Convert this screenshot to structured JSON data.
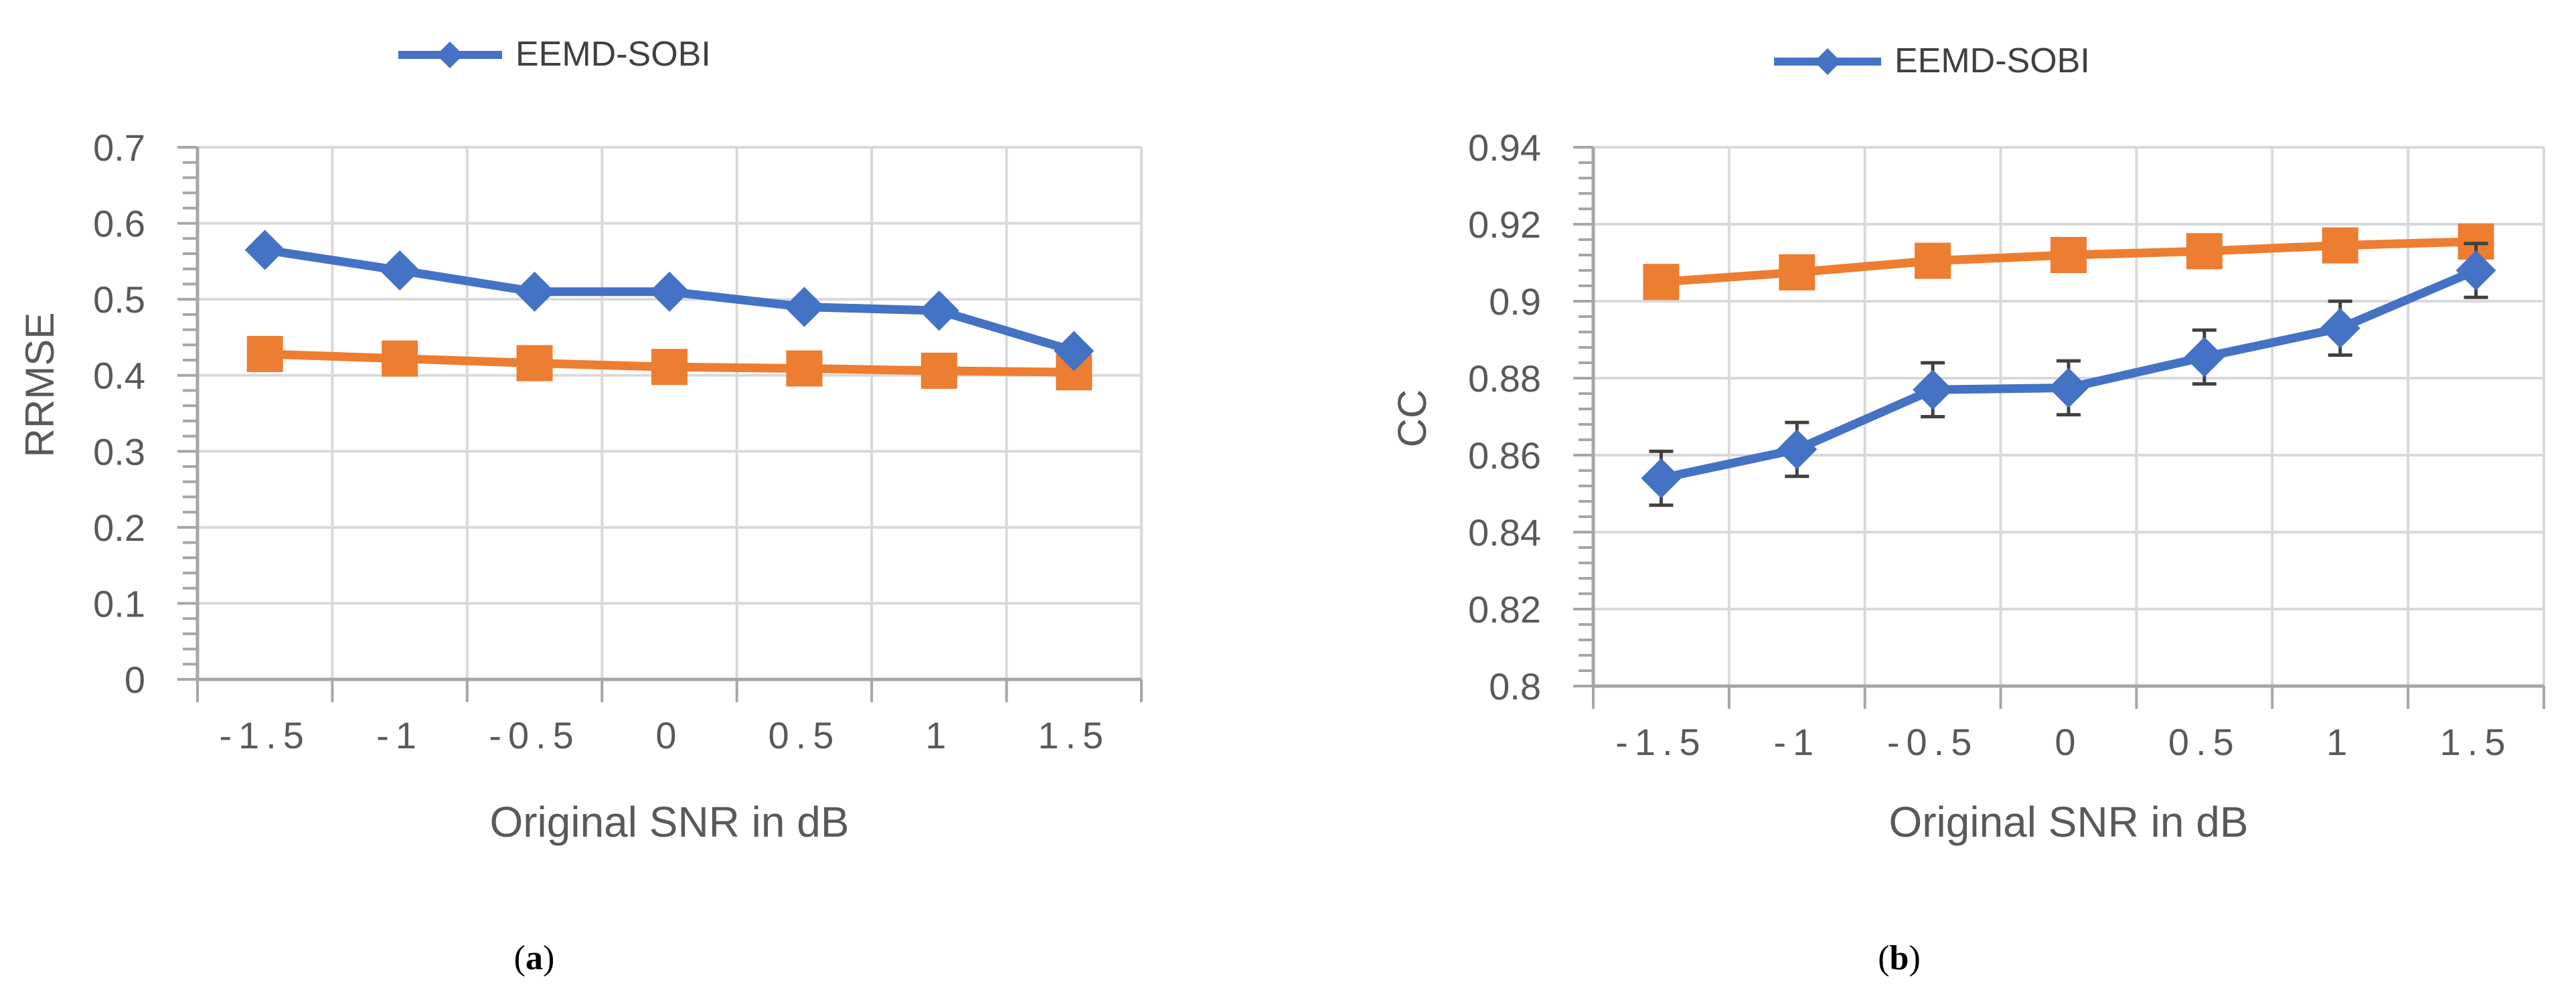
{
  "colors": {
    "series_blue": "#4472c4",
    "series_orange": "#ed7d31",
    "grid": "#d9d9d9",
    "axis": "#a6a6a6",
    "error_bar": "#404040"
  },
  "chart_data": [
    {
      "type": "line",
      "caption_letter": "a",
      "categories": [
        "-1.5",
        "-1",
        "-0.5",
        "0",
        "0.5",
        "1",
        "1.5"
      ],
      "xlabel": "Original SNR in dB",
      "ylabel": "RRMSE",
      "ylim": [
        0,
        0.7
      ],
      "yticks": [
        "0",
        "0.1",
        "0.2",
        "0.3",
        "0.4",
        "0.5",
        "0.6",
        "0.7"
      ],
      "grid": true,
      "legend": {
        "placement": "top",
        "entries": [
          "EEMD-SOBI"
        ]
      },
      "series": [
        {
          "name": "EEMD-SOBI",
          "color": "#4472c4",
          "marker": "diamond",
          "values": [
            0.565,
            0.538,
            0.51,
            0.51,
            0.49,
            0.485,
            0.432
          ],
          "error": [
            0.008,
            0.008,
            0.008,
            0.008,
            0.008,
            0.008,
            0.008
          ]
        },
        {
          "color": "#ed7d31",
          "marker": "square",
          "values": [
            0.428,
            0.422,
            0.416,
            0.411,
            0.409,
            0.406,
            0.404
          ]
        }
      ]
    },
    {
      "type": "line",
      "caption_letter": "b",
      "categories": [
        "-1.5",
        "-1",
        "-0.5",
        "0",
        "0.5",
        "1",
        "1.5"
      ],
      "xlabel": "Original SNR in dB",
      "ylabel": "CC",
      "ylim": [
        0.8,
        0.94
      ],
      "yticks": [
        "0.8",
        "0.82",
        "0.84",
        "0.86",
        "0.88",
        "0.9",
        "0.92",
        "0.94"
      ],
      "grid": true,
      "legend": {
        "placement": "top",
        "entries": [
          "EEMD-SOBI"
        ]
      },
      "series": [
        {
          "name": "EEMD-SOBI",
          "color": "#4472c4",
          "marker": "diamond",
          "values": [
            0.854,
            0.8615,
            0.877,
            0.8775,
            0.8855,
            0.893,
            0.908
          ],
          "error": [
            0.007,
            0.007,
            0.007,
            0.007,
            0.007,
            0.007,
            0.007
          ]
        },
        {
          "color": "#ed7d31",
          "marker": "square",
          "values": [
            0.905,
            0.9075,
            0.9105,
            0.912,
            0.913,
            0.9145,
            0.9155
          ]
        }
      ]
    }
  ]
}
